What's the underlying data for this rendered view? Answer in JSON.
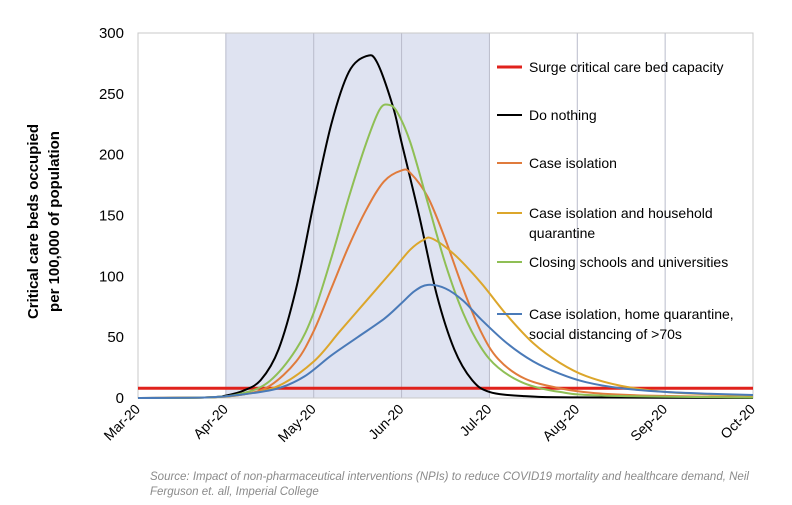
{
  "chart_data": {
    "type": "line",
    "ylabel": [
      "Critical care beds occupied",
      "per 100,000 of population"
    ],
    "xlabel": "",
    "ylim": [
      0,
      300
    ],
    "yticks": [
      0,
      50,
      100,
      150,
      200,
      250,
      300
    ],
    "x_tick_labels": [
      "Mar-20",
      "Apr-20",
      "May-20",
      "Jun-20",
      "Jul-20",
      "Aug-20",
      "Sep-20",
      "Oct-20"
    ],
    "x_range_months": [
      0,
      7
    ],
    "grid": "vertical",
    "legend_position": "right",
    "shaded_region": {
      "from": "Apr-20",
      "to": "Jul-20",
      "color": "#dfe3f1"
    },
    "series": [
      {
        "name": "Surge critical care bed capacity",
        "color": "#e0221c",
        "legend_lines": [
          "Surge critical care bed capacity"
        ],
        "points": [
          [
            0,
            8
          ],
          [
            7,
            8
          ]
        ]
      },
      {
        "name": "Do nothing",
        "color": "#000000",
        "legend_lines": [
          "Do nothing"
        ],
        "points": [
          [
            0,
            0
          ],
          [
            0.8,
            0.5
          ],
          [
            1,
            2
          ],
          [
            1.2,
            6
          ],
          [
            1.4,
            15
          ],
          [
            1.6,
            40
          ],
          [
            1.8,
            90
          ],
          [
            2,
            160
          ],
          [
            2.2,
            225
          ],
          [
            2.4,
            268
          ],
          [
            2.6,
            281
          ],
          [
            2.72,
            276
          ],
          [
            2.9,
            240
          ],
          [
            3,
            210
          ],
          [
            3.2,
            150
          ],
          [
            3.4,
            85
          ],
          [
            3.6,
            40
          ],
          [
            3.8,
            15
          ],
          [
            4,
            5
          ],
          [
            4.4,
            1.5
          ],
          [
            5,
            0.5
          ],
          [
            7,
            0
          ]
        ]
      },
      {
        "name": "Case isolation",
        "color": "#e07b3c",
        "legend_lines": [
          "Case isolation"
        ],
        "points": [
          [
            0,
            0
          ],
          [
            0.8,
            0.5
          ],
          [
            1.2,
            3
          ],
          [
            1.5,
            10
          ],
          [
            1.8,
            30
          ],
          [
            2,
            55
          ],
          [
            2.2,
            90
          ],
          [
            2.4,
            125
          ],
          [
            2.6,
            155
          ],
          [
            2.8,
            178
          ],
          [
            3,
            187
          ],
          [
            3.1,
            185
          ],
          [
            3.3,
            165
          ],
          [
            3.5,
            130
          ],
          [
            3.7,
            90
          ],
          [
            3.9,
            55
          ],
          [
            4.1,
            32
          ],
          [
            4.4,
            16
          ],
          [
            4.8,
            8
          ],
          [
            5.2,
            4
          ],
          [
            5.8,
            2
          ],
          [
            7,
            0.5
          ]
        ]
      },
      {
        "name": "Case isolation and household quarantine",
        "color": "#dca62b",
        "legend_lines": [
          "Case isolation and household",
          "quarantine"
        ],
        "points": [
          [
            0,
            0
          ],
          [
            0.8,
            0.5
          ],
          [
            1.2,
            3
          ],
          [
            1.6,
            10
          ],
          [
            2,
            30
          ],
          [
            2.3,
            55
          ],
          [
            2.6,
            80
          ],
          [
            2.9,
            105
          ],
          [
            3.1,
            122
          ],
          [
            3.25,
            130
          ],
          [
            3.35,
            131
          ],
          [
            3.6,
            118
          ],
          [
            3.9,
            95
          ],
          [
            4.2,
            68
          ],
          [
            4.5,
            45
          ],
          [
            4.8,
            29
          ],
          [
            5.1,
            18
          ],
          [
            5.5,
            10
          ],
          [
            6,
            5
          ],
          [
            6.5,
            3
          ],
          [
            7,
            2
          ]
        ]
      },
      {
        "name": "Closing schools and universities",
        "color": "#8fbf55",
        "legend_lines": [
          "Closing schools and universities"
        ],
        "points": [
          [
            0,
            0
          ],
          [
            0.8,
            0.5
          ],
          [
            1.2,
            4
          ],
          [
            1.5,
            14
          ],
          [
            1.8,
            40
          ],
          [
            2,
            70
          ],
          [
            2.2,
            115
          ],
          [
            2.4,
            165
          ],
          [
            2.6,
            210
          ],
          [
            2.75,
            237
          ],
          [
            2.85,
            241
          ],
          [
            2.95,
            235
          ],
          [
            3.1,
            210
          ],
          [
            3.3,
            160
          ],
          [
            3.5,
            110
          ],
          [
            3.7,
            70
          ],
          [
            3.9,
            42
          ],
          [
            4.1,
            25
          ],
          [
            4.4,
            12
          ],
          [
            4.8,
            5
          ],
          [
            5.3,
            2
          ],
          [
            7,
            0.3
          ]
        ]
      },
      {
        "name": "Case isolation, home quarantine, social distancing of >70s",
        "color": "#4a7ab8",
        "legend_lines": [
          "Case isolation, home quarantine,",
          "social distancing of >70s"
        ],
        "points": [
          [
            0,
            0
          ],
          [
            0.8,
            0.5
          ],
          [
            1.2,
            3
          ],
          [
            1.6,
            8
          ],
          [
            1.9,
            18
          ],
          [
            2.2,
            35
          ],
          [
            2.5,
            50
          ],
          [
            2.8,
            65
          ],
          [
            3,
            78
          ],
          [
            3.15,
            88
          ],
          [
            3.3,
            93
          ],
          [
            3.5,
            90
          ],
          [
            3.7,
            80
          ],
          [
            3.9,
            65
          ],
          [
            4.2,
            45
          ],
          [
            4.5,
            30
          ],
          [
            4.8,
            20
          ],
          [
            5.1,
            13
          ],
          [
            5.5,
            8
          ],
          [
            6,
            5
          ],
          [
            6.5,
            3.5
          ],
          [
            7,
            2.5
          ]
        ]
      }
    ]
  },
  "source_note": "Source: Impact of non-pharmaceutical interventions (NPIs) to reduce COVID19 mortality and healthcare demand, Neil Ferguson et. all, Imperial College"
}
